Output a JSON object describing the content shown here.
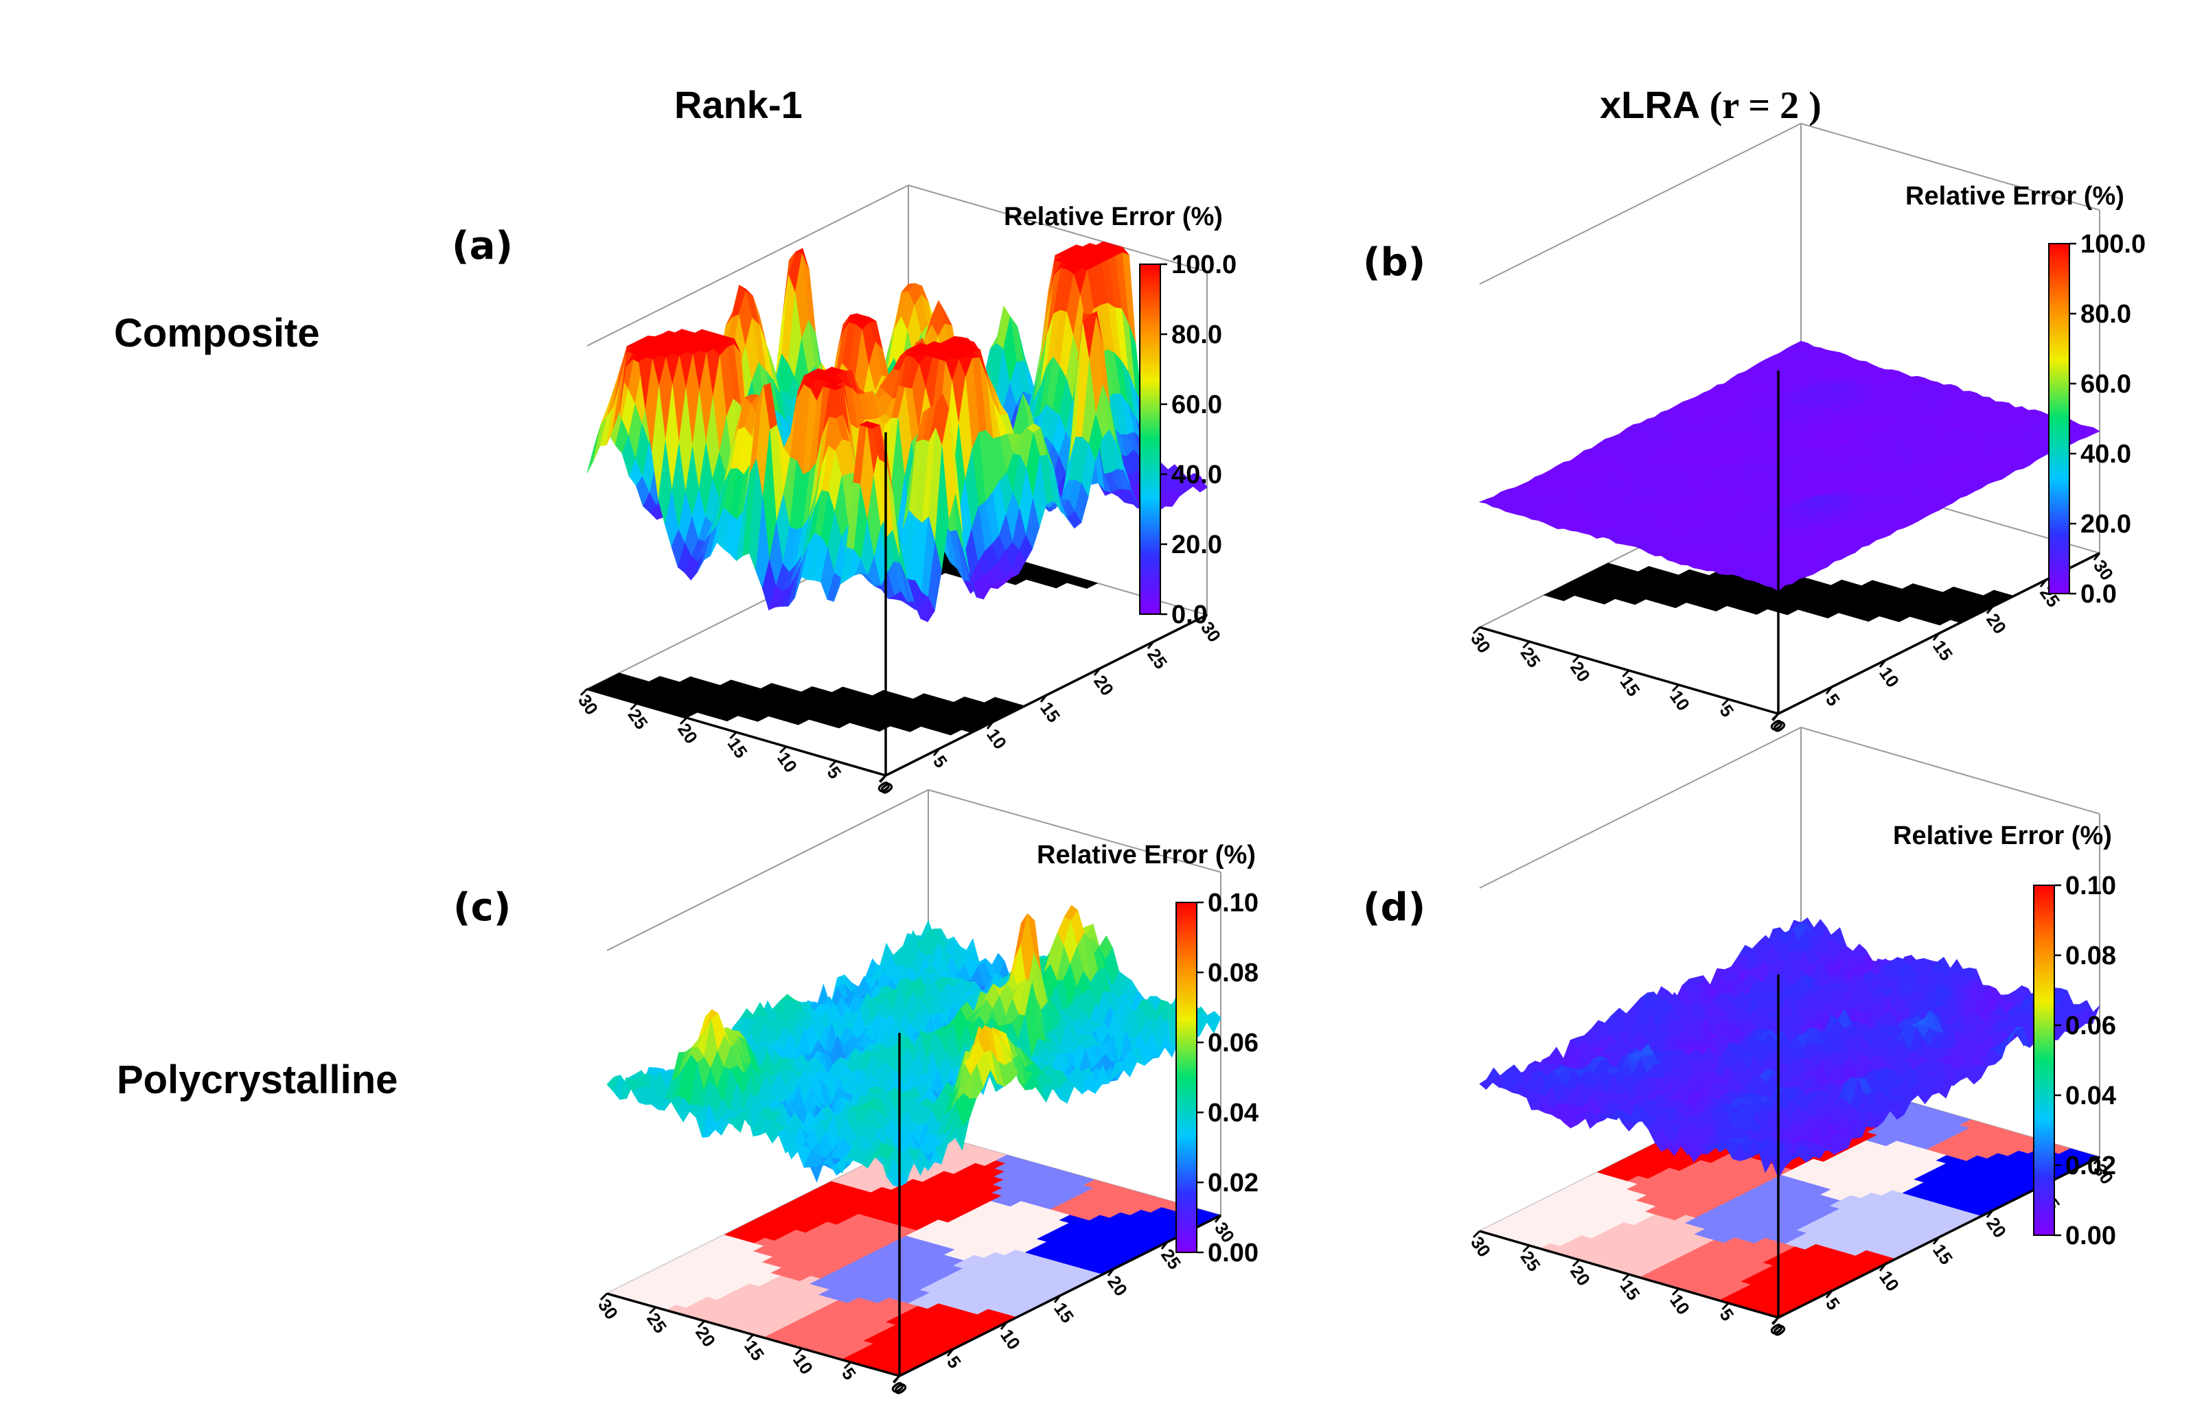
{
  "headers": {
    "col1": "Rank-1",
    "col2_text": "xLRA",
    "col2_math": "(r = 2 )"
  },
  "rows": {
    "row1": "Composite",
    "row2": "Polycrystalline"
  },
  "colors": {
    "colormap": [
      "#8000ff",
      "#3030ff",
      "#00c8ff",
      "#00e070",
      "#f0f000",
      "#ff8000",
      "#ff0000"
    ],
    "phase_black": "#000000",
    "grain_colors": [
      "#ff0000",
      "#ff6b6b",
      "#ffc4c4",
      "#fff0f0",
      "#c4c8ff",
      "#7b80ff",
      "#0000ff"
    ]
  },
  "chart_data": [
    {
      "type": "surface3d",
      "panel": "(a)",
      "colorbar_title": "Relative Error (%)",
      "colorbar_ticks": [
        "0.0",
        "20.0",
        "40.0",
        "60.0",
        "80.0",
        "100.0"
      ],
      "zlim": [
        0,
        100
      ],
      "x_ticks": [
        "0",
        "5",
        "10",
        "15",
        "20",
        "25",
        "30"
      ],
      "y_ticks": [
        "0",
        "5",
        "10",
        "15",
        "20",
        "25",
        "30"
      ],
      "xlim": [
        0,
        30
      ],
      "ylim": [
        0,
        30
      ],
      "base": "composite",
      "surface": {
        "baseline": 6,
        "noise": 5,
        "peak_count": 46,
        "peak_max": 98,
        "seed": 11
      }
    },
    {
      "type": "surface3d",
      "panel": "(b)",
      "colorbar_title": "Relative Error (%)",
      "colorbar_ticks": [
        "0.0",
        "20.0",
        "40.0",
        "60.0",
        "80.0",
        "100.0"
      ],
      "zlim": [
        0,
        100
      ],
      "x_ticks": [
        "0",
        "5",
        "10",
        "15",
        "20",
        "25",
        "30"
      ],
      "y_ticks": [
        "0",
        "5",
        "10",
        "15",
        "20",
        "25",
        "30"
      ],
      "xlim": [
        0,
        30
      ],
      "ylim": [
        0,
        30
      ],
      "base": "composite",
      "surface": {
        "baseline": 3,
        "noise": 1.5,
        "peak_count": 2,
        "peak_max": 8,
        "seed": 23
      }
    },
    {
      "type": "surface3d",
      "panel": "(c)",
      "colorbar_title": "Relative Error (%)",
      "colorbar_ticks": [
        "0.00",
        "0.02",
        "0.04",
        "0.06",
        "0.08",
        "0.10"
      ],
      "zlim": [
        0,
        0.1
      ],
      "x_ticks": [
        "0",
        "5",
        "10",
        "15",
        "20",
        "25",
        "30"
      ],
      "y_ticks": [
        "0",
        "5",
        "10",
        "15",
        "20",
        "25",
        "30"
      ],
      "xlim": [
        0,
        30
      ],
      "ylim": [
        0,
        30
      ],
      "base": "polycrystal",
      "surface": {
        "baseline": 0.035,
        "noise": 0.012,
        "peak_count": 8,
        "peak_max": 0.062,
        "seed": 37
      }
    },
    {
      "type": "surface3d",
      "panel": "(d)",
      "colorbar_title": "Relative Error (%)",
      "colorbar_ticks": [
        "0.00",
        "0.02",
        "0.04",
        "0.06",
        "0.08",
        "0.10"
      ],
      "zlim": [
        0,
        0.1
      ],
      "x_ticks": [
        "0",
        "5",
        "10",
        "15",
        "20",
        "25",
        "30"
      ],
      "y_ticks": [
        "0",
        "5",
        "10",
        "15",
        "20",
        "25",
        "30"
      ],
      "xlim": [
        0,
        30
      ],
      "ylim": [
        0,
        30
      ],
      "base": "polycrystal",
      "surface": {
        "baseline": 0.012,
        "noise": 0.008,
        "peak_count": 10,
        "peak_max": 0.012,
        "seed": 53
      }
    }
  ]
}
